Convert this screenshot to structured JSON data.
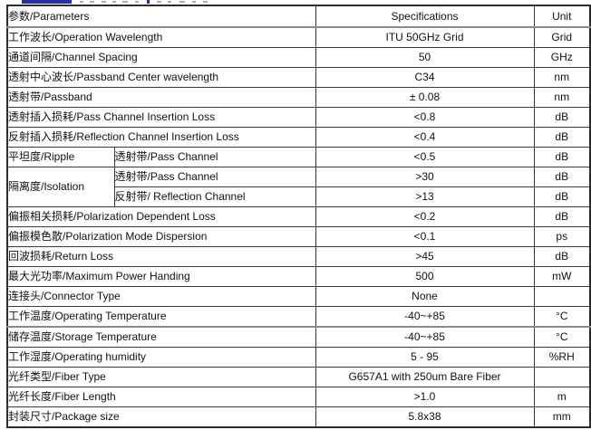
{
  "colors": {
    "border": "#3b3b3b",
    "outer_border": "#2c2c2c",
    "text": "#111111",
    "cropped_heading_blue": "#2a2f9e"
  },
  "table": {
    "header": {
      "parameters": "参数/Parameters",
      "specifications": "Specifications",
      "unit": "Unit"
    },
    "rows": [
      {
        "param": "工作波长/Operation Wavelength",
        "spec": "ITU 50GHz Grid",
        "unit": "Grid"
      },
      {
        "param": "通道间隔/Channel Spacing",
        "spec": "50",
        "unit": "GHz"
      },
      {
        "param": "透射中心波长/Passband Center wavelength",
        "spec": "C34",
        "unit": "nm"
      },
      {
        "param": "透射带/Passband",
        "spec": "± 0.08",
        "unit": "nm"
      },
      {
        "param": "透射插入损耗/Pass Channel Insertion Loss",
        "spec": "<0.8",
        "unit": "dB"
      },
      {
        "param": "反射插入损耗/Reflection Channel Insertion Loss",
        "spec": "<0.4",
        "unit": "dB"
      },
      {
        "param": "平坦度/Ripple",
        "sub": "透射带/Pass Channel",
        "spec": "<0.5",
        "unit": "dB"
      },
      {
        "param": "隔离度/Isolation",
        "param_rowspan": 2,
        "sub": "透射带/Pass Channel",
        "spec": ">30",
        "unit": "dB"
      },
      {
        "sub": "反射带/ Reflection Channel",
        "spec": ">13",
        "unit": "dB"
      },
      {
        "param": "偏振相关损耗/Polarization Dependent Loss",
        "spec": "<0.2",
        "unit": "dB"
      },
      {
        "param": "偏振模色散/Polarization Mode Dispersion",
        "spec": "<0.1",
        "unit": "ps"
      },
      {
        "param": "回波损耗/Return Loss",
        "spec": ">45",
        "unit": "dB"
      },
      {
        "param": "最大光功率/Maximum Power Handing",
        "spec": "500",
        "unit": "mW"
      },
      {
        "param": "连接头/Connector Type",
        "spec": "None",
        "unit": ""
      },
      {
        "param": "工作温度/Operating Temperature",
        "spec": "-40~+85",
        "unit": "°C"
      },
      {
        "param": "储存温度/Storage Temperature",
        "spec": "-40~+85",
        "unit": "°C"
      },
      {
        "param": "工作湿度/Operating humidity",
        "spec": "5 - 95",
        "unit": "%RH"
      },
      {
        "param": "光纤类型/Fiber Type",
        "spec": "G657A1 with 250um Bare Fiber",
        "unit": ""
      },
      {
        "param": "光纤长度/Fiber Length",
        "spec": ">1.0",
        "unit": "m"
      },
      {
        "param": "封装尺寸/Package size",
        "spec": "5.8x38",
        "unit": "mm"
      }
    ]
  }
}
